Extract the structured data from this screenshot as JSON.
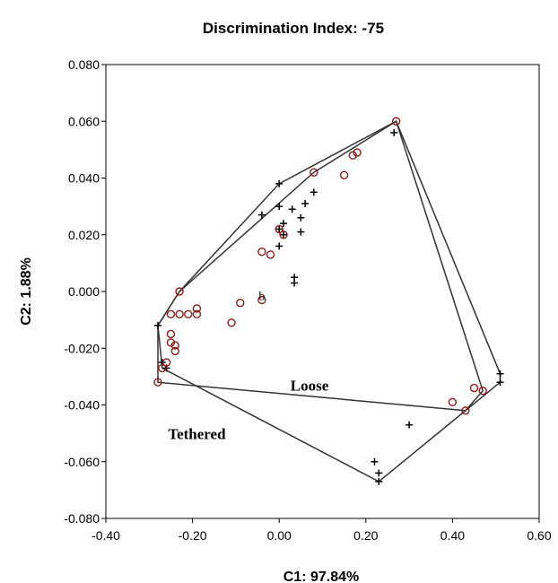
{
  "chart_data": {
    "type": "scatter",
    "title": "Discrimination Index: -75",
    "xlabel": "C1: 97.84%",
    "ylabel": "C2: 1.88%",
    "xlim": [
      -0.4,
      0.6
    ],
    "ylim": [
      -0.08,
      0.08
    ],
    "xticks": [
      "-0.40",
      "-0.20",
      "0.00",
      "0.20",
      "0.40",
      "0.60"
    ],
    "yticks": [
      "-0.080",
      "-0.060",
      "-0.040",
      "-0.020",
      "0.000",
      "0.020",
      "0.040",
      "0.060",
      "0.080"
    ],
    "xtick_values": [
      -0.4,
      -0.2,
      0.0,
      0.2,
      0.4,
      0.6
    ],
    "ytick_values": [
      -0.08,
      -0.06,
      -0.04,
      -0.02,
      0.0,
      0.02,
      0.04,
      0.06,
      0.08
    ],
    "grid": false,
    "colors": {
      "loose_marker": "#000000",
      "tethered_marker": "#8b1a1a",
      "hull": "#333333"
    },
    "series": [
      {
        "name": "Loose",
        "marker": "plus",
        "points": [
          [
            0.265,
            0.056
          ],
          [
            0.0,
            0.038
          ],
          [
            -0.04,
            0.027
          ],
          [
            0.0,
            0.03
          ],
          [
            0.03,
            0.029
          ],
          [
            0.08,
            0.035
          ],
          [
            0.06,
            0.031
          ],
          [
            0.05,
            0.026
          ],
          [
            0.01,
            0.024
          ],
          [
            0.0,
            0.022
          ],
          [
            0.01,
            0.02
          ],
          [
            0.05,
            0.021
          ],
          [
            0.0,
            0.016
          ],
          [
            -0.28,
            -0.012
          ],
          [
            -0.27,
            -0.025
          ],
          [
            -0.26,
            -0.027
          ],
          [
            0.51,
            -0.029
          ],
          [
            0.51,
            -0.032
          ],
          [
            0.3,
            -0.047
          ],
          [
            0.22,
            -0.06
          ],
          [
            0.23,
            -0.064
          ],
          [
            0.23,
            -0.067
          ],
          [
            0.035,
            0.005
          ],
          [
            0.035,
            0.003
          ]
        ]
      },
      {
        "name": "Tethered",
        "marker": "circle",
        "points": [
          [
            -0.25,
            -0.008
          ],
          [
            -0.23,
            -0.008
          ],
          [
            -0.21,
            -0.008
          ],
          [
            -0.19,
            -0.006
          ],
          [
            -0.19,
            -0.008
          ],
          [
            -0.25,
            -0.015
          ],
          [
            -0.25,
            -0.018
          ],
          [
            -0.24,
            -0.019
          ],
          [
            -0.24,
            -0.021
          ],
          [
            -0.26,
            -0.025
          ],
          [
            -0.27,
            -0.027
          ],
          [
            -0.11,
            -0.011
          ],
          [
            -0.09,
            -0.004
          ],
          [
            -0.04,
            0.014
          ],
          [
            -0.02,
            0.013
          ],
          [
            0.0,
            0.022
          ],
          [
            0.01,
            0.02
          ],
          [
            -0.04,
            -0.003
          ],
          [
            0.15,
            0.041
          ],
          [
            0.17,
            0.048
          ],
          [
            0.18,
            0.049
          ],
          [
            0.4,
            -0.039
          ],
          [
            0.45,
            -0.034
          ],
          [
            0.47,
            -0.035
          ],
          [
            -0.28,
            -0.032
          ],
          [
            0.43,
            -0.042
          ],
          [
            -0.23,
            0.0
          ],
          [
            0.08,
            0.042
          ],
          [
            0.27,
            0.06
          ]
        ]
      }
    ],
    "hulls": [
      [
        [
          0.27,
          0.06
        ],
        [
          0.51,
          -0.029
        ],
        [
          0.51,
          -0.032
        ],
        [
          0.43,
          -0.042
        ],
        [
          -0.28,
          -0.032
        ],
        [
          -0.28,
          -0.012
        ],
        [
          -0.23,
          0.0
        ],
        [
          0.0,
          0.038
        ]
      ],
      [
        [
          0.27,
          0.06
        ],
        [
          0.47,
          -0.035
        ],
        [
          0.43,
          -0.042
        ],
        [
          0.23,
          -0.067
        ],
        [
          -0.27,
          -0.027
        ],
        [
          -0.28,
          -0.012
        ],
        [
          -0.23,
          0.0
        ],
        [
          0.08,
          0.042
        ]
      ]
    ],
    "annotations": [
      {
        "text": "Loose",
        "x": 0.07,
        "y": -0.035
      },
      {
        "text": "Tethered",
        "x": -0.19,
        "y": -0.052
      },
      {
        "text": "b",
        "x": -0.04,
        "y": -0.003
      }
    ]
  }
}
